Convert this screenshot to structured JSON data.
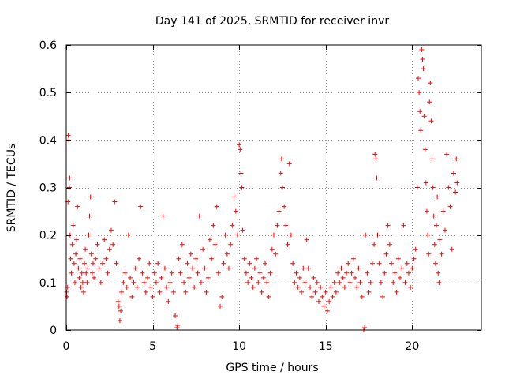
{
  "chart_data": {
    "type": "scatter",
    "title": "Day 141 of 2025, SRMTID for receiver invr",
    "xlabel": "GPS time / hours",
    "ylabel": "SRMTID / TECUs",
    "xlim": [
      0,
      24
    ],
    "ylim": [
      0,
      0.6
    ],
    "x_ticks": [
      0,
      5,
      10,
      15,
      20
    ],
    "x_tick_labels": [
      "0",
      "5",
      "10",
      "15",
      "20"
    ],
    "y_ticks": [
      0,
      0.1,
      0.2,
      0.3,
      0.4,
      0.5,
      0.6
    ],
    "y_tick_labels": [
      "0",
      "0.1",
      "0.2",
      "0.3",
      "0.4",
      "0.5",
      "0.6"
    ],
    "grid": true,
    "marker": "+",
    "series": [
      {
        "name": "SRMTID",
        "color": "#ff0000",
        "points": [
          [
            0.02,
            0.08
          ],
          [
            0.05,
            0.07
          ],
          [
            0.08,
            0.09
          ],
          [
            0.1,
            0.27
          ],
          [
            0.12,
            0.41
          ],
          [
            0.15,
            0.4
          ],
          [
            0.18,
            0.3
          ],
          [
            0.2,
            0.32
          ],
          [
            0.22,
            0.2
          ],
          [
            0.25,
            0.15
          ],
          [
            0.3,
            0.12
          ],
          [
            0.35,
            0.18
          ],
          [
            0.4,
            0.22
          ],
          [
            0.45,
            0.14
          ],
          [
            0.5,
            0.1
          ],
          [
            0.55,
            0.16
          ],
          [
            0.6,
            0.19
          ],
          [
            0.65,
            0.26
          ],
          [
            0.7,
            0.13
          ],
          [
            0.75,
            0.11
          ],
          [
            0.8,
            0.15
          ],
          [
            0.85,
            0.09
          ],
          [
            0.9,
            0.12
          ],
          [
            0.95,
            0.1
          ],
          [
            1.0,
            0.08
          ],
          [
            1.05,
            0.14
          ],
          [
            1.1,
            0.17
          ],
          [
            1.15,
            0.12
          ],
          [
            1.2,
            0.1
          ],
          [
            1.25,
            0.13
          ],
          [
            1.3,
            0.2
          ],
          [
            1.35,
            0.24
          ],
          [
            1.4,
            0.28
          ],
          [
            1.45,
            0.16
          ],
          [
            1.5,
            0.12
          ],
          [
            1.55,
            0.14
          ],
          [
            1.6,
            0.11
          ],
          [
            1.7,
            0.15
          ],
          [
            1.8,
            0.18
          ],
          [
            1.9,
            0.13
          ],
          [
            2.0,
            0.1
          ],
          [
            2.1,
            0.14
          ],
          [
            2.2,
            0.19
          ],
          [
            2.3,
            0.15
          ],
          [
            2.4,
            0.12
          ],
          [
            2.5,
            0.17
          ],
          [
            2.6,
            0.21
          ],
          [
            2.7,
            0.18
          ],
          [
            2.8,
            0.27
          ],
          [
            2.9,
            0.14
          ],
          [
            3.0,
            0.06
          ],
          [
            3.05,
            0.05
          ],
          [
            3.1,
            0.02
          ],
          [
            3.15,
            0.04
          ],
          [
            3.2,
            0.08
          ],
          [
            3.3,
            0.1
          ],
          [
            3.4,
            0.12
          ],
          [
            3.5,
            0.09
          ],
          [
            3.6,
            0.2
          ],
          [
            3.7,
            0.11
          ],
          [
            3.8,
            0.07
          ],
          [
            3.9,
            0.1
          ],
          [
            4.0,
            0.13
          ],
          [
            4.1,
            0.09
          ],
          [
            4.2,
            0.15
          ],
          [
            4.3,
            0.26
          ],
          [
            4.4,
            0.12
          ],
          [
            4.5,
            0.1
          ],
          [
            4.6,
            0.08
          ],
          [
            4.7,
            0.11
          ],
          [
            4.8,
            0.14
          ],
          [
            4.9,
            0.09
          ],
          [
            5.0,
            0.07
          ],
          [
            5.1,
            0.12
          ],
          [
            5.2,
            0.1
          ],
          [
            5.3,
            0.14
          ],
          [
            5.4,
            0.08
          ],
          [
            5.5,
            0.11
          ],
          [
            5.6,
            0.24
          ],
          [
            5.7,
            0.13
          ],
          [
            5.8,
            0.09
          ],
          [
            5.9,
            0.06
          ],
          [
            6.0,
            0.1
          ],
          [
            6.1,
            0.12
          ],
          [
            6.2,
            0.08
          ],
          [
            6.3,
            0.03
          ],
          [
            6.4,
            0.005
          ],
          [
            6.45,
            0.01
          ],
          [
            6.5,
            0.15
          ],
          [
            6.6,
            0.12
          ],
          [
            6.7,
            0.18
          ],
          [
            6.8,
            0.1
          ],
          [
            6.9,
            0.08
          ],
          [
            7.0,
            0.14
          ],
          [
            7.1,
            0.11
          ],
          [
            7.2,
            0.16
          ],
          [
            7.3,
            0.13
          ],
          [
            7.4,
            0.09
          ],
          [
            7.5,
            0.15
          ],
          [
            7.6,
            0.12
          ],
          [
            7.7,
            0.24
          ],
          [
            7.8,
            0.1
          ],
          [
            7.9,
            0.17
          ],
          [
            8.0,
            0.13
          ],
          [
            8.1,
            0.08
          ],
          [
            8.2,
            0.11
          ],
          [
            8.3,
            0.19
          ],
          [
            8.4,
            0.15
          ],
          [
            8.5,
            0.22
          ],
          [
            8.6,
            0.18
          ],
          [
            8.7,
            0.26
          ],
          [
            8.8,
            0.12
          ],
          [
            8.9,
            0.05
          ],
          [
            9.0,
            0.07
          ],
          [
            9.1,
            0.14
          ],
          [
            9.2,
            0.2
          ],
          [
            9.3,
            0.16
          ],
          [
            9.4,
            0.13
          ],
          [
            9.5,
            0.18
          ],
          [
            9.6,
            0.22
          ],
          [
            9.7,
            0.28
          ],
          [
            9.8,
            0.25
          ],
          [
            9.9,
            0.2
          ],
          [
            10.0,
            0.39
          ],
          [
            10.05,
            0.38
          ],
          [
            10.1,
            0.33
          ],
          [
            10.15,
            0.3
          ],
          [
            10.2,
            0.21
          ],
          [
            10.3,
            0.15
          ],
          [
            10.4,
            0.12
          ],
          [
            10.5,
            0.1
          ],
          [
            10.6,
            0.14
          ],
          [
            10.7,
            0.11
          ],
          [
            10.8,
            0.09
          ],
          [
            10.9,
            0.13
          ],
          [
            11.0,
            0.15
          ],
          [
            11.1,
            0.1
          ],
          [
            11.2,
            0.12
          ],
          [
            11.3,
            0.08
          ],
          [
            11.4,
            0.11
          ],
          [
            11.5,
            0.14
          ],
          [
            11.6,
            0.1
          ],
          [
            11.7,
            0.07
          ],
          [
            11.8,
            0.12
          ],
          [
            11.9,
            0.17
          ],
          [
            12.0,
            0.2
          ],
          [
            12.1,
            0.16
          ],
          [
            12.2,
            0.22
          ],
          [
            12.3,
            0.25
          ],
          [
            12.4,
            0.33
          ],
          [
            12.45,
            0.36
          ],
          [
            12.5,
            0.3
          ],
          [
            12.6,
            0.26
          ],
          [
            12.7,
            0.22
          ],
          [
            12.8,
            0.18
          ],
          [
            12.9,
            0.35
          ],
          [
            13.0,
            0.2
          ],
          [
            13.1,
            0.14
          ],
          [
            13.2,
            0.1
          ],
          [
            13.3,
            0.12
          ],
          [
            13.4,
            0.09
          ],
          [
            13.5,
            0.11
          ],
          [
            13.6,
            0.08
          ],
          [
            13.7,
            0.13
          ],
          [
            13.8,
            0.1
          ],
          [
            13.9,
            0.19
          ],
          [
            14.0,
            0.13
          ],
          [
            14.1,
            0.09
          ],
          [
            14.2,
            0.07
          ],
          [
            14.3,
            0.11
          ],
          [
            14.4,
            0.08
          ],
          [
            14.5,
            0.1
          ],
          [
            14.6,
            0.06
          ],
          [
            14.7,
            0.09
          ],
          [
            14.8,
            0.07
          ],
          [
            14.9,
            0.05
          ],
          [
            15.0,
            0.08
          ],
          [
            15.1,
            0.04
          ],
          [
            15.2,
            0.06
          ],
          [
            15.3,
            0.09
          ],
          [
            15.4,
            0.07
          ],
          [
            15.5,
            0.1
          ],
          [
            15.6,
            0.08
          ],
          [
            15.7,
            0.12
          ],
          [
            15.8,
            0.1
          ],
          [
            15.9,
            0.13
          ],
          [
            16.0,
            0.11
          ],
          [
            16.1,
            0.09
          ],
          [
            16.2,
            0.12
          ],
          [
            16.3,
            0.14
          ],
          [
            16.4,
            0.1
          ],
          [
            16.5,
            0.12
          ],
          [
            16.6,
            0.15
          ],
          [
            16.7,
            0.11
          ],
          [
            16.8,
            0.09
          ],
          [
            16.9,
            0.13
          ],
          [
            17.0,
            0.1
          ],
          [
            17.1,
            0.07
          ],
          [
            17.2,
            0.0
          ],
          [
            17.25,
            0.005
          ],
          [
            17.3,
            0.2
          ],
          [
            17.4,
            0.12
          ],
          [
            17.5,
            0.08
          ],
          [
            17.6,
            0.1
          ],
          [
            17.7,
            0.14
          ],
          [
            17.8,
            0.18
          ],
          [
            17.85,
            0.37
          ],
          [
            17.9,
            0.36
          ],
          [
            17.95,
            0.32
          ],
          [
            18.0,
            0.2
          ],
          [
            18.1,
            0.14
          ],
          [
            18.2,
            0.1
          ],
          [
            18.3,
            0.07
          ],
          [
            18.4,
            0.12
          ],
          [
            18.5,
            0.16
          ],
          [
            18.6,
            0.22
          ],
          [
            18.7,
            0.18
          ],
          [
            18.8,
            0.14
          ],
          [
            18.9,
            0.1
          ],
          [
            19.0,
            0.12
          ],
          [
            19.1,
            0.08
          ],
          [
            19.2,
            0.15
          ],
          [
            19.3,
            0.11
          ],
          [
            19.4,
            0.13
          ],
          [
            19.5,
            0.22
          ],
          [
            19.6,
            0.1
          ],
          [
            19.7,
            0.14
          ],
          [
            19.8,
            0.12
          ],
          [
            19.9,
            0.09
          ],
          [
            20.0,
            0.13
          ],
          [
            20.1,
            0.15
          ],
          [
            20.2,
            0.17
          ],
          [
            20.3,
            0.3
          ],
          [
            20.35,
            0.53
          ],
          [
            20.4,
            0.5
          ],
          [
            20.45,
            0.46
          ],
          [
            20.5,
            0.42
          ],
          [
            20.55,
            0.59
          ],
          [
            20.6,
            0.57
          ],
          [
            20.65,
            0.55
          ],
          [
            20.7,
            0.45
          ],
          [
            20.75,
            0.38
          ],
          [
            20.8,
            0.31
          ],
          [
            20.85,
            0.25
          ],
          [
            20.9,
            0.2
          ],
          [
            20.95,
            0.16
          ],
          [
            21.0,
            0.48
          ],
          [
            21.05,
            0.52
          ],
          [
            21.1,
            0.44
          ],
          [
            21.15,
            0.36
          ],
          [
            21.2,
            0.3
          ],
          [
            21.25,
            0.24
          ],
          [
            21.3,
            0.18
          ],
          [
            21.35,
            0.14
          ],
          [
            21.4,
            0.22
          ],
          [
            21.45,
            0.28
          ],
          [
            21.5,
            0.12
          ],
          [
            21.55,
            0.1
          ],
          [
            21.6,
            0.19
          ],
          [
            21.7,
            0.16
          ],
          [
            21.8,
            0.25
          ],
          [
            21.9,
            0.21
          ],
          [
            22.0,
            0.37
          ],
          [
            22.1,
            0.3
          ],
          [
            22.2,
            0.26
          ],
          [
            22.3,
            0.17
          ],
          [
            22.4,
            0.33
          ],
          [
            22.5,
            0.29
          ],
          [
            22.55,
            0.36
          ],
          [
            22.6,
            0.31
          ]
        ]
      }
    ]
  }
}
